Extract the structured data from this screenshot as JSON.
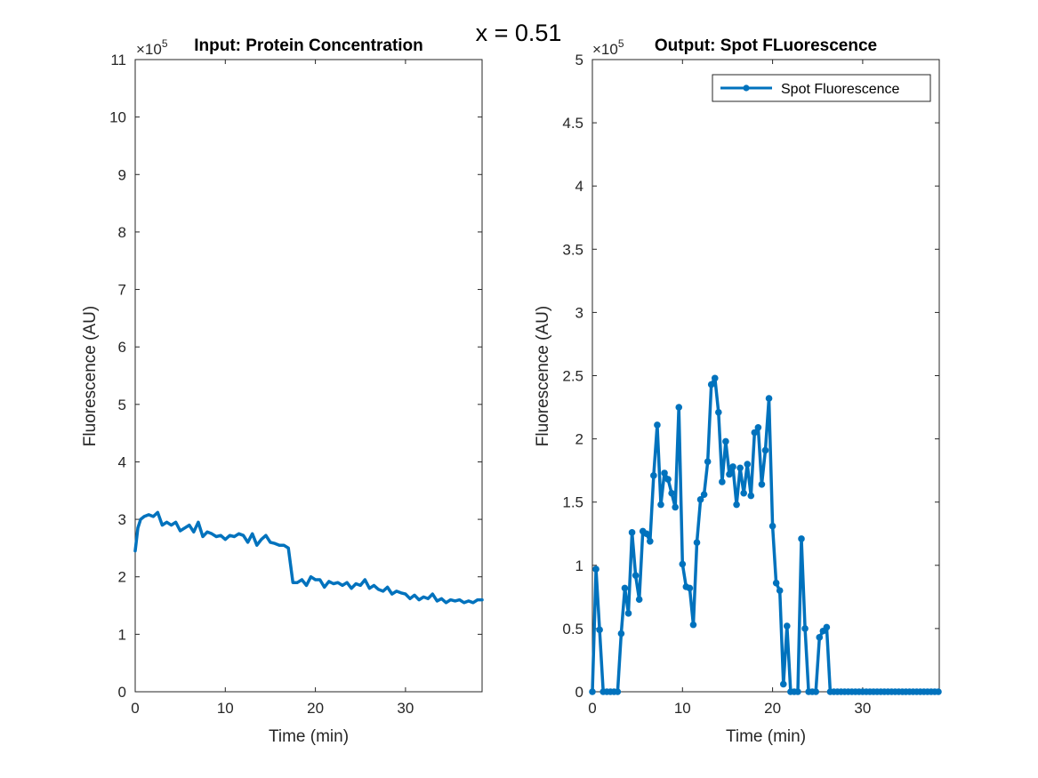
{
  "figure": {
    "suptitle": "x = 0.51",
    "line_color": "#0072BD"
  },
  "chart_data": [
    {
      "type": "line",
      "title": "Input: Protein Concentration",
      "xlabel": "Time (min)",
      "ylabel": "Fluorescence (AU)",
      "y_multiplier_label": "×10",
      "y_multiplier_exponent": "5",
      "xlim": [
        0,
        38.5
      ],
      "ylim": [
        0,
        11
      ],
      "xticks": [
        0,
        10,
        20,
        30
      ],
      "yticks": [
        0,
        1,
        2,
        3,
        4,
        5,
        6,
        7,
        8,
        9,
        10,
        11
      ],
      "grid": false,
      "legend": null,
      "series": [
        {
          "markers": false,
          "x": [
            0,
            0.3,
            0.6,
            1.0,
            1.5,
            2.0,
            2.5,
            3.0,
            3.5,
            4.0,
            4.5,
            5.0,
            5.5,
            6.0,
            6.5,
            7.0,
            7.5,
            8.0,
            8.5,
            9.0,
            9.5,
            10.0,
            10.5,
            11.0,
            11.5,
            12.0,
            12.5,
            13.0,
            13.5,
            14.0,
            14.5,
            15.0,
            15.5,
            16.0,
            16.5,
            17.0,
            17.5,
            18.0,
            18.5,
            19.0,
            19.5,
            20.0,
            20.5,
            21.0,
            21.5,
            22.0,
            22.5,
            23.0,
            23.5,
            24.0,
            24.5,
            25.0,
            25.5,
            26.0,
            26.5,
            27.0,
            27.5,
            28.0,
            28.5,
            29.0,
            29.5,
            30.0,
            30.5,
            31.0,
            31.5,
            32.0,
            32.5,
            33.0,
            33.5,
            34.0,
            34.5,
            35.0,
            35.5,
            36.0,
            36.5,
            37.0,
            37.5,
            38.0,
            38.5
          ],
          "y": [
            2.45,
            2.85,
            3.0,
            3.05,
            3.08,
            3.05,
            3.12,
            2.9,
            2.95,
            2.9,
            2.95,
            2.8,
            2.85,
            2.9,
            2.78,
            2.95,
            2.7,
            2.78,
            2.75,
            2.7,
            2.72,
            2.65,
            2.72,
            2.7,
            2.75,
            2.72,
            2.6,
            2.75,
            2.55,
            2.65,
            2.72,
            2.6,
            2.58,
            2.55,
            2.55,
            2.5,
            1.9,
            1.9,
            1.95,
            1.85,
            2.0,
            1.95,
            1.95,
            1.82,
            1.92,
            1.88,
            1.9,
            1.85,
            1.9,
            1.8,
            1.88,
            1.85,
            1.95,
            1.8,
            1.85,
            1.78,
            1.75,
            1.82,
            1.7,
            1.75,
            1.72,
            1.7,
            1.62,
            1.68,
            1.6,
            1.65,
            1.62,
            1.7,
            1.58,
            1.62,
            1.55,
            1.6,
            1.58,
            1.6,
            1.55,
            1.58,
            1.55,
            1.6,
            1.6
          ]
        }
      ]
    },
    {
      "type": "line",
      "title": "Output: Spot FLuorescence",
      "xlabel": "Time (min)",
      "ylabel": "Fluorescence (AU)",
      "y_multiplier_label": "×10",
      "y_multiplier_exponent": "5",
      "xlim": [
        0,
        38.5
      ],
      "ylim": [
        0,
        5
      ],
      "xticks": [
        0,
        10,
        20,
        30
      ],
      "yticks": [
        0,
        0.5,
        1,
        1.5,
        2,
        2.5,
        3,
        3.5,
        4,
        4.5,
        5
      ],
      "grid": false,
      "legend": {
        "position": "top-right"
      },
      "series": [
        {
          "name": "Spot Fluorescence",
          "markers": true,
          "x": [
            0,
            0.4,
            0.8,
            1.2,
            1.6,
            2.0,
            2.4,
            2.8,
            3.2,
            3.6,
            4.0,
            4.4,
            4.8,
            5.2,
            5.6,
            6.0,
            6.4,
            6.8,
            7.2,
            7.6,
            8.0,
            8.4,
            8.8,
            9.2,
            9.6,
            10.0,
            10.4,
            10.8,
            11.2,
            11.6,
            12.0,
            12.4,
            12.8,
            13.2,
            13.6,
            14.0,
            14.4,
            14.8,
            15.2,
            15.6,
            16.0,
            16.4,
            16.8,
            17.2,
            17.6,
            18.0,
            18.4,
            18.8,
            19.2,
            19.6,
            20.0,
            20.4,
            20.8,
            21.2,
            21.6,
            22.0,
            22.4,
            22.8,
            23.2,
            23.6,
            24.0,
            24.4,
            24.8,
            25.2,
            25.6,
            26.0,
            26.4,
            26.8,
            27.2,
            27.6,
            28.0,
            28.4,
            28.8,
            29.2,
            29.6,
            30.0,
            30.4,
            30.8,
            31.2,
            31.6,
            32.0,
            32.4,
            32.8,
            33.2,
            33.6,
            34.0,
            34.4,
            34.8,
            35.2,
            35.6,
            36.0,
            36.4,
            36.8,
            37.2,
            37.6,
            38.0,
            38.4
          ],
          "y": [
            0,
            0.97,
            0.49,
            0,
            0,
            0,
            0,
            0,
            0.46,
            0.82,
            0.62,
            1.26,
            0.92,
            0.73,
            1.27,
            1.25,
            1.19,
            1.71,
            2.11,
            1.48,
            1.73,
            1.68,
            1.57,
            1.46,
            2.25,
            1.01,
            0.83,
            0.82,
            0.53,
            1.18,
            1.52,
            1.56,
            1.82,
            2.43,
            2.48,
            2.21,
            1.66,
            1.98,
            1.72,
            1.78,
            1.48,
            1.77,
            1.57,
            1.8,
            1.55,
            2.05,
            2.09,
            1.64,
            1.91,
            2.32,
            1.31,
            0.86,
            0.8,
            0.06,
            0.52,
            0,
            0,
            0,
            1.21,
            0.5,
            0,
            0,
            0,
            0.43,
            0.48,
            0.51,
            0,
            0,
            0,
            0,
            0,
            0,
            0,
            0,
            0,
            0,
            0,
            0,
            0,
            0,
            0,
            0,
            0,
            0,
            0,
            0,
            0,
            0,
            0,
            0,
            0,
            0,
            0,
            0,
            0,
            0,
            0
          ]
        }
      ]
    }
  ]
}
